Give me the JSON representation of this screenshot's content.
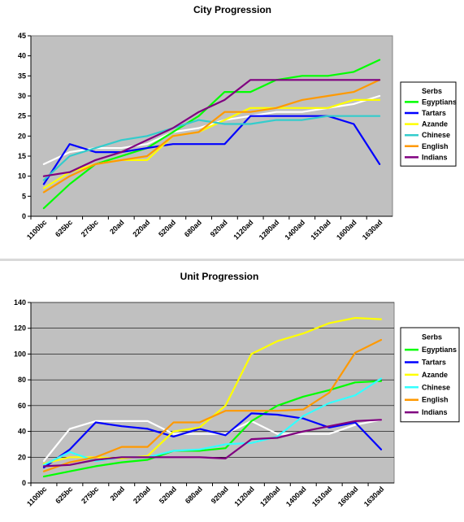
{
  "chart_data": [
    {
      "type": "line",
      "title": "City Progression",
      "xlabel": "",
      "ylabel": "",
      "categories": [
        "1100bc",
        "625bc",
        "275bc",
        "20ad",
        "220ad",
        "520ad",
        "680ad",
        "920ad",
        "1120ad",
        "1280ad",
        "1400ad",
        "1510ad",
        "1600ad",
        "1630ad"
      ],
      "ylim": [
        0,
        45
      ],
      "yticks": [
        0,
        5,
        10,
        15,
        20,
        25,
        30,
        35,
        40,
        45
      ],
      "grid": false,
      "legend": "right",
      "series": [
        {
          "name": "Serbs",
          "color": "#ffffff",
          "values": [
            13,
            16,
            17,
            17,
            18,
            21,
            22,
            24,
            25,
            26,
            26,
            27,
            28,
            30
          ]
        },
        {
          "name": "Egyptians",
          "color": "#00ff00",
          "values": [
            2,
            8,
            13,
            15,
            17,
            21,
            25,
            31,
            31,
            34,
            35,
            35,
            36,
            39
          ]
        },
        {
          "name": "Tartars",
          "color": "#0000ff",
          "values": [
            8,
            18,
            16,
            16,
            17,
            18,
            18,
            18,
            25,
            25,
            25,
            25,
            23,
            13
          ]
        },
        {
          "name": "Azande",
          "color": "#ffff00",
          "values": [
            7,
            11,
            13,
            14,
            14,
            20,
            21,
            24,
            27,
            27,
            27,
            27,
            29,
            29
          ]
        },
        {
          "name": "Chinese",
          "color": "#33cccc",
          "values": [
            9,
            15,
            17,
            19,
            20,
            22,
            24,
            23,
            23,
            24,
            24,
            25,
            25,
            25
          ]
        },
        {
          "name": "English",
          "color": "#ff9900",
          "values": [
            6,
            10,
            13,
            14,
            15,
            20,
            21,
            26,
            26,
            27,
            29,
            30,
            31,
            34
          ]
        },
        {
          "name": "Indians",
          "color": "#800080",
          "values": [
            10,
            11,
            14,
            16,
            19,
            22,
            26,
            29,
            34,
            34,
            34,
            34,
            34,
            34
          ]
        }
      ]
    },
    {
      "type": "line",
      "title": "Unit Progression",
      "xlabel": "",
      "ylabel": "",
      "categories": [
        "1100bc",
        "625bc",
        "275bc",
        "20ad",
        "220ad",
        "520ad",
        "680ad",
        "920ad",
        "1120ad",
        "1280ad",
        "1400ad",
        "1510ad",
        "1600ad",
        "1630ad"
      ],
      "ylim": [
        0,
        140
      ],
      "yticks": [
        0,
        20,
        40,
        60,
        80,
        100,
        120,
        140
      ],
      "grid": true,
      "legend": "right",
      "series": [
        {
          "name": "Serbs",
          "color": "#ffffff",
          "values": [
            17,
            42,
            48,
            48,
            48,
            38,
            38,
            38,
            48,
            38,
            38,
            38,
            45,
            49
          ]
        },
        {
          "name": "Egyptians",
          "color": "#00ff00",
          "values": [
            5,
            9,
            13,
            16,
            18,
            25,
            25,
            27,
            48,
            60,
            67,
            72,
            78,
            79
          ]
        },
        {
          "name": "Tartars",
          "color": "#0000ff",
          "values": [
            12,
            26,
            47,
            44,
            42,
            36,
            42,
            37,
            54,
            53,
            50,
            43,
            47,
            26
          ]
        },
        {
          "name": "Azande",
          "color": "#ffff00",
          "values": [
            15,
            20,
            20,
            19,
            21,
            40,
            43,
            60,
            100,
            110,
            116,
            124,
            128,
            127
          ]
        },
        {
          "name": "Chinese",
          "color": "#33ffff",
          "values": [
            14,
            24,
            17,
            20,
            20,
            25,
            26,
            30,
            31,
            36,
            52,
            62,
            68,
            81
          ]
        },
        {
          "name": "English",
          "color": "#ff9900",
          "values": [
            9,
            16,
            20,
            28,
            28,
            47,
            47,
            56,
            56,
            56,
            57,
            70,
            101,
            111
          ]
        },
        {
          "name": "Indians",
          "color": "#800080",
          "values": [
            13,
            14,
            18,
            20,
            20,
            20,
            20,
            19,
            34,
            35,
            40,
            44,
            48,
            49
          ]
        }
      ]
    }
  ]
}
